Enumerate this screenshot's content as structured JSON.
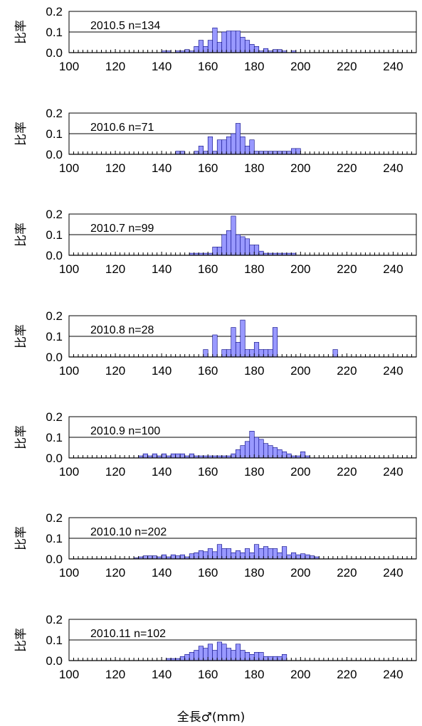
{
  "figure": {
    "xlabel": "全長♂(mm)",
    "bar_color": "#9999ff",
    "bar_edge_color": "#000080"
  },
  "chart_data": [
    {
      "type": "bar",
      "label": "2010.5  n=134",
      "ylabel": "比率",
      "xlim": [
        100,
        250
      ],
      "ylim": [
        0,
        0.2
      ],
      "yticks": [
        "0.0",
        "0.1",
        "0.2"
      ],
      "xticks": [
        "100",
        "120",
        "140",
        "160",
        "180",
        "200",
        "220",
        "240"
      ],
      "grid": "horizontal at 0.1 and 0.2",
      "bin_width": 2,
      "x": [
        140,
        142,
        146,
        148,
        150,
        152,
        154,
        156,
        158,
        160,
        162,
        164,
        166,
        168,
        170,
        172,
        174,
        176,
        178,
        180,
        182,
        184,
        186,
        188,
        190,
        192,
        196
      ],
      "values": [
        0.008,
        0.008,
        0.008,
        0.008,
        0.015,
        0.008,
        0.03,
        0.06,
        0.03,
        0.06,
        0.12,
        0.05,
        0.1,
        0.105,
        0.105,
        0.105,
        0.075,
        0.06,
        0.04,
        0.03,
        0.008,
        0.02,
        0.008,
        0.015,
        0.015,
        0.008,
        0.008
      ]
    },
    {
      "type": "bar",
      "label": "2010.6  n=71",
      "ylabel": "比率",
      "xlim": [
        100,
        250
      ],
      "ylim": [
        0,
        0.2
      ],
      "yticks": [
        "0.0",
        "0.1",
        "0.2"
      ],
      "xticks": [
        "100",
        "120",
        "140",
        "160",
        "180",
        "200",
        "220",
        "240"
      ],
      "grid": "horizontal at 0.1 and 0.2",
      "bin_width": 2,
      "x": [
        146,
        148,
        154,
        156,
        158,
        160,
        162,
        164,
        166,
        168,
        170,
        172,
        174,
        176,
        178,
        180,
        182,
        184,
        186,
        188,
        190,
        192,
        194,
        196,
        198
      ],
      "values": [
        0.015,
        0.015,
        0.015,
        0.04,
        0.015,
        0.085,
        0.015,
        0.07,
        0.07,
        0.085,
        0.1,
        0.15,
        0.085,
        0.04,
        0.07,
        0.015,
        0.015,
        0.015,
        0.015,
        0.015,
        0.015,
        0.015,
        0.015,
        0.028,
        0.028
      ]
    },
    {
      "type": "bar",
      "label": "2010.7  n=99",
      "ylabel": "比率",
      "xlim": [
        100,
        250
      ],
      "ylim": [
        0,
        0.2
      ],
      "yticks": [
        "0.0",
        "0.1",
        "0.2"
      ],
      "xticks": [
        "100",
        "120",
        "140",
        "160",
        "180",
        "200",
        "220",
        "240"
      ],
      "grid": "horizontal at 0.1 and 0.2",
      "bin_width": 2,
      "x": [
        152,
        154,
        156,
        158,
        160,
        162,
        164,
        166,
        168,
        170,
        172,
        174,
        176,
        178,
        180,
        182,
        184,
        186,
        188,
        190,
        192,
        194,
        196
      ],
      "values": [
        0.01,
        0.01,
        0.01,
        0.01,
        0.01,
        0.04,
        0.04,
        0.1,
        0.12,
        0.19,
        0.1,
        0.09,
        0.08,
        0.05,
        0.05,
        0.02,
        0.01,
        0.01,
        0.01,
        0.01,
        0.01,
        0.01,
        0.01
      ]
    },
    {
      "type": "bar",
      "label": "2010.8  n=28",
      "ylabel": "比率",
      "xlim": [
        100,
        250
      ],
      "ylim": [
        0,
        0.2
      ],
      "yticks": [
        "0.0",
        "0.1",
        "0.2"
      ],
      "xticks": [
        "100",
        "120",
        "140",
        "160",
        "180",
        "200",
        "220",
        "240"
      ],
      "grid": "horizontal at 0.1 and 0.2",
      "bin_width": 2,
      "x": [
        158,
        162,
        166,
        168,
        170,
        172,
        174,
        176,
        178,
        180,
        182,
        184,
        186,
        188,
        214
      ],
      "values": [
        0.036,
        0.107,
        0.036,
        0.036,
        0.143,
        0.071,
        0.179,
        0.036,
        0.036,
        0.071,
        0.036,
        0.036,
        0.036,
        0.143,
        0.036
      ]
    },
    {
      "type": "bar",
      "label": "2010.9  n=100",
      "ylabel": "比率",
      "xlim": [
        100,
        250
      ],
      "ylim": [
        0,
        0.2
      ],
      "yticks": [
        "0.0",
        "0.1",
        "0.2"
      ],
      "xticks": [
        "100",
        "120",
        "140",
        "160",
        "180",
        "200",
        "220",
        "240"
      ],
      "grid": "horizontal at 0.1 and 0.2",
      "bin_width": 2,
      "x": [
        130,
        132,
        134,
        136,
        138,
        140,
        142,
        144,
        146,
        148,
        150,
        152,
        154,
        156,
        158,
        160,
        162,
        164,
        166,
        168,
        170,
        172,
        174,
        176,
        178,
        180,
        182,
        184,
        186,
        188,
        190,
        192,
        194,
        196,
        198,
        200,
        202
      ],
      "values": [
        0.01,
        0.02,
        0.01,
        0.02,
        0.01,
        0.02,
        0.01,
        0.02,
        0.02,
        0.02,
        0.01,
        0.02,
        0.01,
        0.01,
        0.01,
        0.01,
        0.01,
        0.01,
        0.01,
        0.01,
        0.02,
        0.04,
        0.06,
        0.08,
        0.13,
        0.1,
        0.09,
        0.07,
        0.06,
        0.05,
        0.04,
        0.03,
        0.02,
        0.01,
        0.01,
        0.03,
        0.01
      ]
    },
    {
      "type": "bar",
      "label": "2010.10  n=202",
      "ylabel": "比率",
      "xlim": [
        100,
        250
      ],
      "ylim": [
        0,
        0.2
      ],
      "yticks": [
        "0.0",
        "0.1",
        "0.2"
      ],
      "xticks": [
        "100",
        "120",
        "140",
        "160",
        "180",
        "200",
        "220",
        "240"
      ],
      "grid": "horizontal at 0.1 and 0.2",
      "bin_width": 2,
      "x": [
        128,
        130,
        132,
        134,
        136,
        138,
        140,
        142,
        144,
        146,
        148,
        150,
        152,
        154,
        156,
        158,
        160,
        162,
        164,
        166,
        168,
        170,
        172,
        174,
        176,
        178,
        180,
        182,
        184,
        186,
        188,
        190,
        192,
        194,
        196,
        198,
        200,
        202,
        204,
        206
      ],
      "values": [
        0.005,
        0.01,
        0.015,
        0.015,
        0.015,
        0.01,
        0.02,
        0.01,
        0.02,
        0.015,
        0.02,
        0.01,
        0.025,
        0.03,
        0.04,
        0.035,
        0.05,
        0.035,
        0.07,
        0.05,
        0.05,
        0.03,
        0.04,
        0.03,
        0.05,
        0.03,
        0.07,
        0.05,
        0.06,
        0.05,
        0.05,
        0.03,
        0.06,
        0.02,
        0.03,
        0.02,
        0.025,
        0.02,
        0.015,
        0.01
      ]
    },
    {
      "type": "bar",
      "label": "2010.11  n=102",
      "ylabel": "比率",
      "xlim": [
        100,
        250
      ],
      "ylim": [
        0,
        0.2
      ],
      "yticks": [
        "0.0",
        "0.1",
        "0.2"
      ],
      "xticks": [
        "100",
        "120",
        "140",
        "160",
        "180",
        "200",
        "220",
        "240"
      ],
      "grid": "horizontal at 0.1 and 0.2",
      "bin_width": 2,
      "x": [
        142,
        144,
        146,
        148,
        150,
        152,
        154,
        156,
        158,
        160,
        162,
        164,
        166,
        168,
        170,
        172,
        174,
        176,
        178,
        180,
        182,
        184,
        186,
        188,
        190,
        192
      ],
      "values": [
        0.01,
        0.01,
        0.01,
        0.02,
        0.03,
        0.04,
        0.05,
        0.07,
        0.06,
        0.08,
        0.05,
        0.09,
        0.08,
        0.06,
        0.05,
        0.08,
        0.05,
        0.04,
        0.03,
        0.04,
        0.04,
        0.02,
        0.02,
        0.02,
        0.02,
        0.03
      ]
    }
  ]
}
